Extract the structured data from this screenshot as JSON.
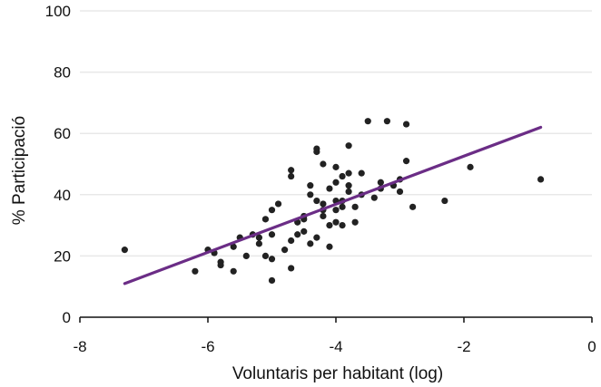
{
  "chart_data": {
    "type": "scatter",
    "title": "",
    "xlabel": "Voluntaris per habitant (log)",
    "ylabel": "% Participació",
    "xlim": [
      -8,
      0
    ],
    "ylim": [
      0,
      100
    ],
    "x_ticks": [
      "-8",
      "-6",
      "-4",
      "-2",
      "0"
    ],
    "y_ticks": [
      "0",
      "20",
      "40",
      "60",
      "80",
      "100"
    ],
    "grid": "horizontal",
    "trend_line": {
      "x": [
        -7.3,
        -0.8
      ],
      "y": [
        11,
        62
      ],
      "color": "#6b2d86"
    },
    "point_color": "#222222",
    "points": [
      [
        -7.3,
        22
      ],
      [
        -6.2,
        15
      ],
      [
        -6.0,
        22
      ],
      [
        -5.9,
        21
      ],
      [
        -5.8,
        18
      ],
      [
        -5.8,
        17
      ],
      [
        -5.6,
        15
      ],
      [
        -5.6,
        23
      ],
      [
        -5.5,
        26
      ],
      [
        -5.4,
        20
      ],
      [
        -5.3,
        27
      ],
      [
        -5.2,
        26
      ],
      [
        -5.2,
        24
      ],
      [
        -5.1,
        32
      ],
      [
        -5.1,
        20
      ],
      [
        -5.0,
        19
      ],
      [
        -5.0,
        12
      ],
      [
        -5.0,
        27
      ],
      [
        -5.0,
        35
      ],
      [
        -4.9,
        37
      ],
      [
        -4.8,
        22
      ],
      [
        -4.7,
        16
      ],
      [
        -4.7,
        25
      ],
      [
        -4.7,
        46
      ],
      [
        -4.7,
        48
      ],
      [
        -4.6,
        31
      ],
      [
        -4.6,
        27
      ],
      [
        -4.5,
        33
      ],
      [
        -4.5,
        28
      ],
      [
        -4.5,
        32
      ],
      [
        -4.4,
        40
      ],
      [
        -4.4,
        43
      ],
      [
        -4.4,
        24
      ],
      [
        -4.3,
        38
      ],
      [
        -4.3,
        26
      ],
      [
        -4.3,
        54
      ],
      [
        -4.3,
        55
      ],
      [
        -4.2,
        33
      ],
      [
        -4.2,
        35
      ],
      [
        -4.2,
        37
      ],
      [
        -4.2,
        50
      ],
      [
        -4.1,
        30
      ],
      [
        -4.1,
        42
      ],
      [
        -4.1,
        23
      ],
      [
        -4.0,
        31
      ],
      [
        -4.0,
        35
      ],
      [
        -4.0,
        38
      ],
      [
        -4.0,
        44
      ],
      [
        -4.0,
        49
      ],
      [
        -3.9,
        38
      ],
      [
        -3.9,
        36
      ],
      [
        -3.9,
        46
      ],
      [
        -3.9,
        30
      ],
      [
        -3.8,
        41
      ],
      [
        -3.8,
        43
      ],
      [
        -3.8,
        47
      ],
      [
        -3.8,
        56
      ],
      [
        -3.7,
        31
      ],
      [
        -3.7,
        36
      ],
      [
        -3.6,
        40
      ],
      [
        -3.6,
        47
      ],
      [
        -3.5,
        64
      ],
      [
        -3.4,
        39
      ],
      [
        -3.3,
        42
      ],
      [
        -3.3,
        44
      ],
      [
        -3.2,
        64
      ],
      [
        -3.1,
        43
      ],
      [
        -3.0,
        41
      ],
      [
        -3.0,
        45
      ],
      [
        -2.9,
        51
      ],
      [
        -2.9,
        63
      ],
      [
        -2.8,
        36
      ],
      [
        -2.3,
        38
      ],
      [
        -1.9,
        49
      ],
      [
        -0.8,
        45
      ]
    ]
  }
}
